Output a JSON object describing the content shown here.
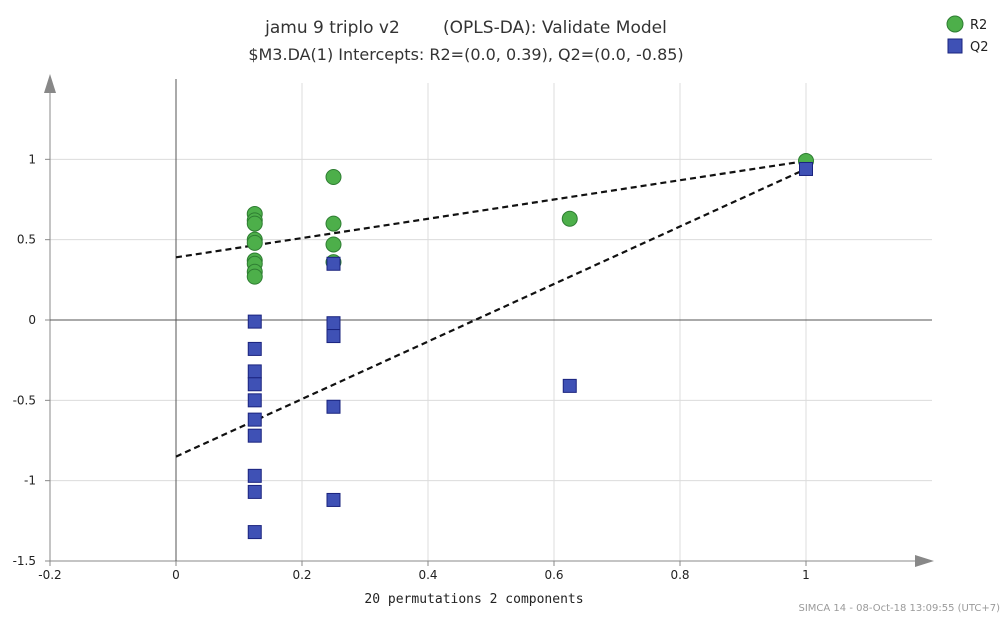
{
  "chart_data": {
    "type": "scatter",
    "title": "jamu 9 triplo v2        (OPLS-DA): Validate Model",
    "subtitle": "$M3.DA(1) Intercepts: R2=(0.0, 0.39), Q2=(0.0, -0.85)",
    "xlabel": "20 permutations 2 components",
    "ylabel": "",
    "xlim": [
      -0.2,
      1.2
    ],
    "ylim": [
      -1.5,
      1.5
    ],
    "x_ticks": [
      -0.2,
      0,
      0.2,
      0.4,
      0.6,
      0.8,
      1
    ],
    "x_tick_labels": [
      "-0.2",
      "0",
      "0.2",
      "0.4",
      "0.6",
      "0.8",
      "1"
    ],
    "y_ticks": [
      1,
      0.5,
      0,
      -0.5,
      -1,
      -1.5
    ],
    "y_tick_labels": [
      "1",
      "0.5",
      "0",
      "-0.5",
      "-1",
      "-1.5"
    ],
    "grid": true,
    "legend_position": "top-right",
    "footer": "SIMCA 14 - 08-Oct-18 13:09:55 (UTC+7)",
    "series": [
      {
        "name": "R2",
        "marker": "circle",
        "color": "#4daf4a",
        "edge_color": "#2e7d32",
        "points": [
          [
            0.125,
            0.66
          ],
          [
            0.125,
            0.62
          ],
          [
            0.125,
            0.6
          ],
          [
            0.125,
            0.5
          ],
          [
            0.125,
            0.48
          ],
          [
            0.125,
            0.37
          ],
          [
            0.125,
            0.35
          ],
          [
            0.125,
            0.3
          ],
          [
            0.125,
            0.27
          ],
          [
            0.25,
            0.89
          ],
          [
            0.25,
            0.6
          ],
          [
            0.25,
            0.47
          ],
          [
            0.25,
            0.36
          ],
          [
            0.625,
            0.63
          ],
          [
            1.0,
            0.99
          ]
        ],
        "regression": {
          "x": [
            0,
            1.0
          ],
          "y": [
            0.39,
            0.99
          ]
        }
      },
      {
        "name": "Q2",
        "marker": "square",
        "color": "#3f51b5",
        "edge_color": "#1a237e",
        "points": [
          [
            0.125,
            -0.01
          ],
          [
            0.125,
            -0.18
          ],
          [
            0.125,
            -0.32
          ],
          [
            0.125,
            -0.4
          ],
          [
            0.125,
            -0.5
          ],
          [
            0.125,
            -0.62
          ],
          [
            0.125,
            -0.72
          ],
          [
            0.125,
            -0.97
          ],
          [
            0.125,
            -1.07
          ],
          [
            0.125,
            -1.32
          ],
          [
            0.25,
            0.35
          ],
          [
            0.25,
            -0.02
          ],
          [
            0.25,
            -0.1
          ],
          [
            0.25,
            -0.54
          ],
          [
            0.25,
            -1.12
          ],
          [
            0.625,
            -0.41
          ],
          [
            1.0,
            0.94
          ]
        ],
        "regression": {
          "x": [
            0,
            1.0
          ],
          "y": [
            -0.85,
            0.94
          ]
        }
      }
    ]
  }
}
